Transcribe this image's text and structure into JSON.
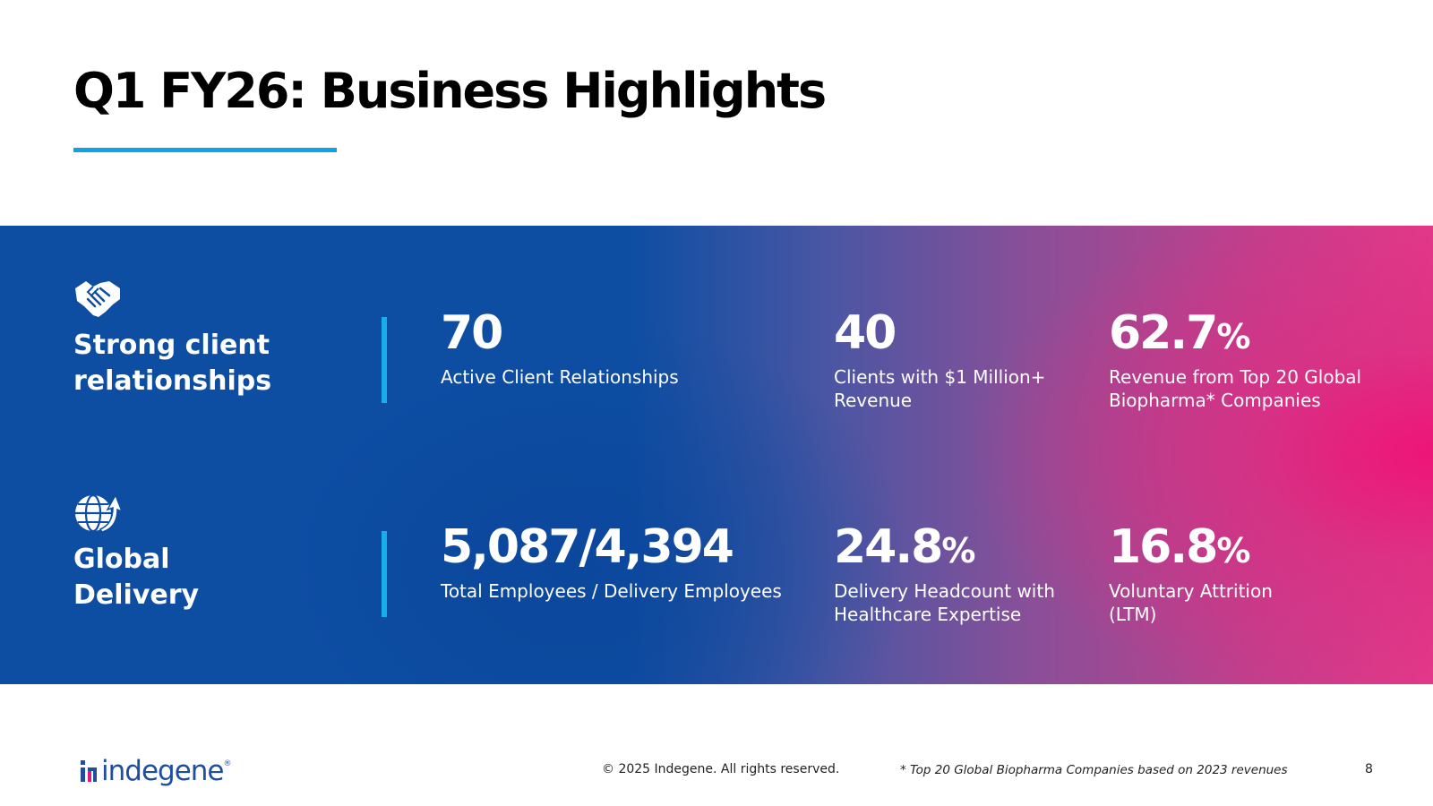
{
  "title": "Q1 FY26: Business Highlights",
  "colors": {
    "accent": "#0fa3e6",
    "band_blue": "#0d4ea3",
    "band_pink": "#ee1478",
    "band_cyan": "#0fc3f5"
  },
  "rows": [
    {
      "icon": "handshake-icon",
      "heading_line1": "Strong client",
      "heading_line2": "relationships",
      "metrics": [
        {
          "value": "70",
          "unit": "",
          "label_line1": "Active Client Relationships",
          "label_line2": ""
        },
        {
          "value": "40",
          "unit": "",
          "label_line1": "Clients with $1 Million+",
          "label_line2": "Revenue"
        },
        {
          "value": "62.7",
          "unit": "%",
          "label_line1": "Revenue from Top 20 Global",
          "label_line2": "Biopharma* Companies"
        }
      ]
    },
    {
      "icon": "globe-growth-icon",
      "heading_line1": "Global",
      "heading_line2": "Delivery",
      "metrics": [
        {
          "value": "5,087/4,394",
          "unit": "",
          "label_line1": "Total Employees / Delivery Employees",
          "label_line2": ""
        },
        {
          "value": "24.8",
          "unit": "%",
          "label_line1": "Delivery Headcount with",
          "label_line2": "Healthcare Expertise"
        },
        {
          "value": "16.8",
          "unit": "%",
          "label_line1": "Voluntary Attrition",
          "label_line2": "(LTM)"
        }
      ]
    }
  ],
  "footer": {
    "logo_text": "indegene",
    "logo_trademark": "®",
    "copyright": "© 2025 Indegene. All rights reserved.",
    "footnote": "* Top 20 Global Biopharma Companies based on 2023 revenues",
    "page_number": "8"
  }
}
